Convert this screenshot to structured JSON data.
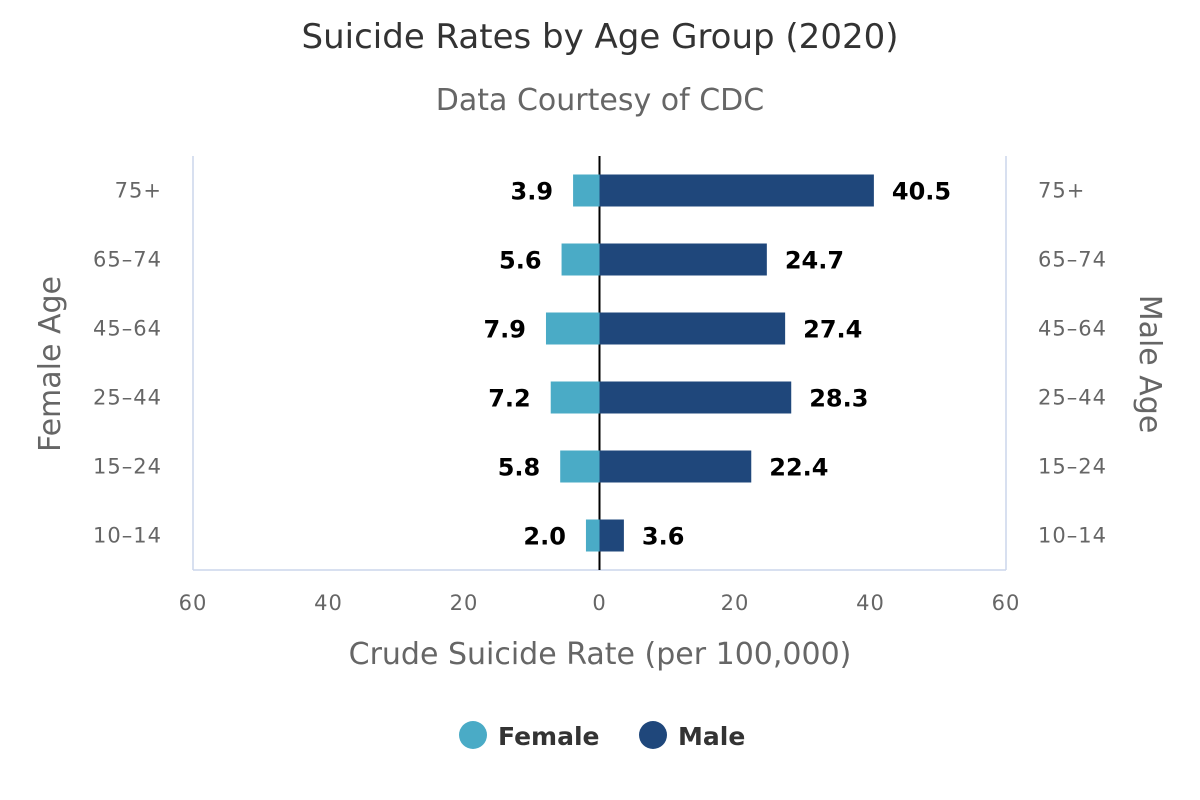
{
  "chart_data": {
    "type": "bar",
    "orientation": "horizontal",
    "layout": "population-pyramid",
    "title": "Suicide Rates by Age Group (2020)",
    "subtitle": "Data Courtesy of CDC",
    "xlabel": "Crude Suicide Rate (per 100,000)",
    "ylabel_left": "Female Age",
    "ylabel_right": "Male Age",
    "categories": [
      "75+",
      "65-74",
      "45-64",
      "25-44",
      "15-24",
      "10-14"
    ],
    "series": [
      {
        "name": "Female",
        "color": "#4aabc6",
        "side": "left",
        "values": [
          3.9,
          5.6,
          7.9,
          7.2,
          5.8,
          2.0
        ],
        "labels": [
          "3.9",
          "5.6",
          "7.9",
          "7.2",
          "5.8",
          "2.0"
        ]
      },
      {
        "name": "Male",
        "color": "#1f477b",
        "side": "right",
        "values": [
          40.5,
          24.7,
          27.4,
          28.3,
          22.4,
          3.6
        ],
        "labels": [
          "40.5",
          "24.7",
          "27.4",
          "28.3",
          "22.4",
          "3.6"
        ]
      }
    ],
    "xlim": [
      -60,
      60
    ],
    "x_ticks": [
      -60,
      -40,
      -20,
      0,
      20,
      40,
      60
    ],
    "x_tick_labels": [
      "60",
      "40",
      "20",
      "0",
      "20",
      "40",
      "60"
    ],
    "grid": false,
    "legend_position": "bottom-center"
  }
}
